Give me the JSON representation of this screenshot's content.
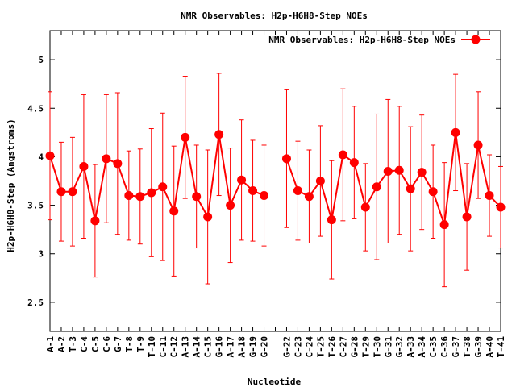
{
  "chart_data": {
    "type": "line",
    "title": "NMR Observables: H2p-H6H8-Step NOEs",
    "xlabel": "Nucleotide",
    "ylabel": "H2p-H6H8-Step (Angstroms)",
    "ylim": [
      2.2,
      5.3
    ],
    "yticks": [
      "2.5",
      "3",
      "3.5",
      "4",
      "4.5",
      "5"
    ],
    "legend": {
      "label": "NMR Observables: H2p-H6H8-Step NOEs",
      "position": "top-right"
    },
    "color": "#ff0000",
    "grid": false,
    "categories": [
      "A-1",
      "A-2",
      "T-3",
      "C-4",
      "C-5",
      "C-6",
      "G-7",
      "T-8",
      "T-9",
      "T-10",
      "C-11",
      "C-12",
      "A-13",
      "A-14",
      "C-15",
      "G-16",
      "A-17",
      "A-18",
      "G-19",
      "G-20",
      "",
      "G-22",
      "C-23",
      "C-24",
      "T-25",
      "T-26",
      "C-27",
      "G-28",
      "T-29",
      "T-30",
      "G-31",
      "G-32",
      "A-33",
      "A-34",
      "C-35",
      "C-36",
      "G-37",
      "T-38",
      "G-39",
      "A-40",
      "T-41"
    ],
    "series": [
      {
        "segments": [
          {
            "start": 0,
            "values": [
              4.01,
              3.64,
              3.64,
              3.9,
              3.34,
              3.98,
              3.93,
              3.6,
              3.59,
              3.63,
              3.69,
              3.44,
              4.2,
              3.59,
              3.38,
              4.23,
              3.5,
              3.76,
              3.65,
              3.6
            ]
          },
          {
            "start": 21,
            "values": [
              3.98,
              3.65,
              3.59,
              3.75,
              3.35,
              4.02,
              3.94,
              3.48,
              3.69,
              3.85,
              3.86,
              3.67,
              3.84,
              3.64,
              3.3,
              4.25,
              3.38,
              4.12,
              3.6,
              3.48
            ]
          }
        ],
        "errors": [
          0.66,
          0.51,
          0.56,
          0.74,
          0.58,
          0.66,
          0.73,
          0.46,
          0.49,
          0.66,
          0.76,
          0.67,
          0.63,
          0.53,
          0.69,
          0.63,
          0.59,
          0.62,
          0.52,
          0.52,
          null,
          0.71,
          0.51,
          0.48,
          0.57,
          0.61,
          0.68,
          0.58,
          0.45,
          0.75,
          0.74,
          0.66,
          0.64,
          0.59,
          0.48,
          0.64,
          0.6,
          0.55,
          0.55,
          0.42,
          0.42
        ]
      }
    ]
  }
}
